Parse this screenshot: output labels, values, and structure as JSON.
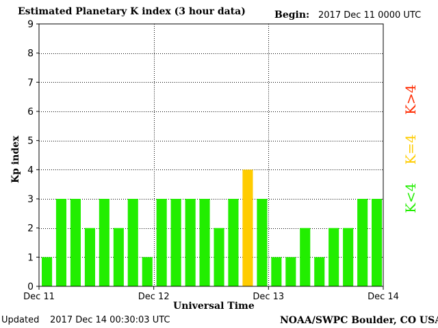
{
  "header": {
    "title": "Estimated Planetary K index (3 hour data)",
    "begin_label": "Begin:",
    "begin_value": "2017 Dec 11 0000 UTC"
  },
  "footer": {
    "updated_label": "Updated",
    "updated_value": "2017 Dec 14 00:30:03 UTC",
    "source": "NOAA/SWPC Boulder, CO USA"
  },
  "legend": {
    "above": "K>4",
    "equal": "K=4",
    "below": "K<4",
    "colors": {
      "above": "#ff2a00",
      "equal": "#ffcc00",
      "below": "#22ee00"
    }
  },
  "chart_data": {
    "type": "bar",
    "title": "Estimated Planetary K index (3 hour data)",
    "xlabel": "Universal Time",
    "ylabel": "Kp index",
    "ylim": [
      0,
      9
    ],
    "yticks": [
      0,
      1,
      2,
      3,
      4,
      5,
      6,
      7,
      8,
      9
    ],
    "xticks": [
      "Dec 11",
      "Dec 12",
      "Dec 13",
      "Dec 14"
    ],
    "grid": true,
    "bar_interval_hours": 3,
    "values": [
      1,
      3,
      3,
      2,
      3,
      2,
      3,
      1,
      3,
      3,
      3,
      3,
      2,
      3,
      4,
      3,
      1,
      1,
      2,
      1,
      2,
      2,
      3,
      3
    ],
    "color_rule": {
      "below_4": "#22ee00",
      "equal_4": "#ffcc00",
      "above_4": "#ff2a00"
    }
  }
}
